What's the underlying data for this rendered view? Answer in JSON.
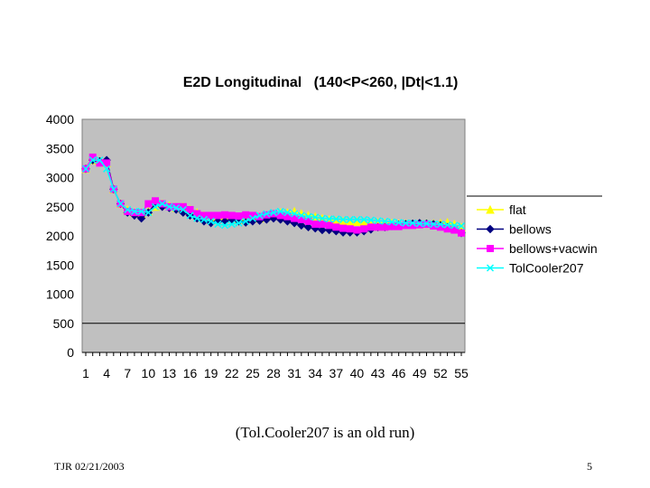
{
  "chart_data": {
    "type": "line",
    "title": "E2D Longitudinal   (140<P<260, |Dt|<1.1)",
    "xlabel": "",
    "ylabel": "",
    "ylim": [
      0,
      4000
    ],
    "yticks": [
      0,
      500,
      1000,
      1500,
      2000,
      2500,
      3000,
      3500,
      4000
    ],
    "xtick_labels": [
      "1",
      "4",
      "7",
      "10",
      "13",
      "16",
      "19",
      "22",
      "25",
      "28",
      "31",
      "34",
      "37",
      "40",
      "43",
      "46",
      "49",
      "52",
      "55"
    ],
    "grid": false,
    "legend_position": "right",
    "series": [
      {
        "name": "flat",
        "color": "#ffff00",
        "marker": "triangle",
        "values": [
          3150,
          3300,
          3280,
          3250,
          2800,
          2550,
          2450,
          2400,
          2380,
          2420,
          2500,
          2550,
          2520,
          2480,
          2500,
          2450,
          2400,
          2350,
          2300,
          2320,
          2350,
          2300,
          2280,
          2320,
          2330,
          2300,
          2350,
          2370,
          2400,
          2400,
          2420,
          2380,
          2350,
          2330,
          2300,
          2280,
          2260,
          2250,
          2240,
          2240,
          2230,
          2220,
          2230,
          2220,
          2220,
          2210,
          2210,
          2200,
          2200,
          2210,
          2210,
          2220,
          2230,
          2200,
          2150
        ]
      },
      {
        "name": "bellows",
        "color": "#000080",
        "marker": "diamond",
        "values": [
          3150,
          3300,
          3280,
          3300,
          2800,
          2550,
          2400,
          2350,
          2300,
          2400,
          2550,
          2500,
          2480,
          2450,
          2400,
          2350,
          2300,
          2250,
          2220,
          2250,
          2250,
          2280,
          2250,
          2230,
          2250,
          2260,
          2280,
          2300,
          2280,
          2250,
          2220,
          2180,
          2150,
          2130,
          2100,
          2100,
          2080,
          2060,
          2060,
          2060,
          2080,
          2110,
          2150,
          2150,
          2170,
          2190,
          2200,
          2210,
          2220,
          2210,
          2200,
          2180,
          2150,
          2120,
          2050
        ]
      },
      {
        "name": "bellows+vacwin",
        "color": "#ff00ff",
        "marker": "square",
        "values": [
          3150,
          3350,
          3250,
          3250,
          2800,
          2550,
          2420,
          2400,
          2400,
          2550,
          2600,
          2550,
          2500,
          2500,
          2500,
          2450,
          2380,
          2350,
          2350,
          2350,
          2360,
          2350,
          2340,
          2360,
          2350,
          2330,
          2360,
          2380,
          2350,
          2330,
          2300,
          2280,
          2250,
          2200,
          2200,
          2180,
          2150,
          2130,
          2120,
          2100,
          2120,
          2150,
          2150,
          2150,
          2160,
          2160,
          2180,
          2180,
          2190,
          2200,
          2170,
          2150,
          2120,
          2100,
          2050
        ]
      },
      {
        "name": "TolCooler207",
        "color": "#00ffff",
        "marker": "x",
        "values": [
          3150,
          3300,
          3300,
          3150,
          2800,
          2550,
          2450,
          2420,
          2420,
          2400,
          2500,
          2550,
          2500,
          2480,
          2450,
          2350,
          2300,
          2280,
          2250,
          2200,
          2180,
          2200,
          2220,
          2250,
          2300,
          2350,
          2380,
          2400,
          2420,
          2400,
          2380,
          2350,
          2330,
          2320,
          2300,
          2290,
          2290,
          2280,
          2280,
          2280,
          2280,
          2270,
          2260,
          2250,
          2240,
          2230,
          2220,
          2220,
          2210,
          2210,
          2200,
          2200,
          2190,
          2180,
          2170
        ]
      }
    ]
  },
  "caption": "(Tol.Cooler207 is an old run)",
  "footer": {
    "left": "TJR  02/21/2003",
    "page_number": "5"
  }
}
